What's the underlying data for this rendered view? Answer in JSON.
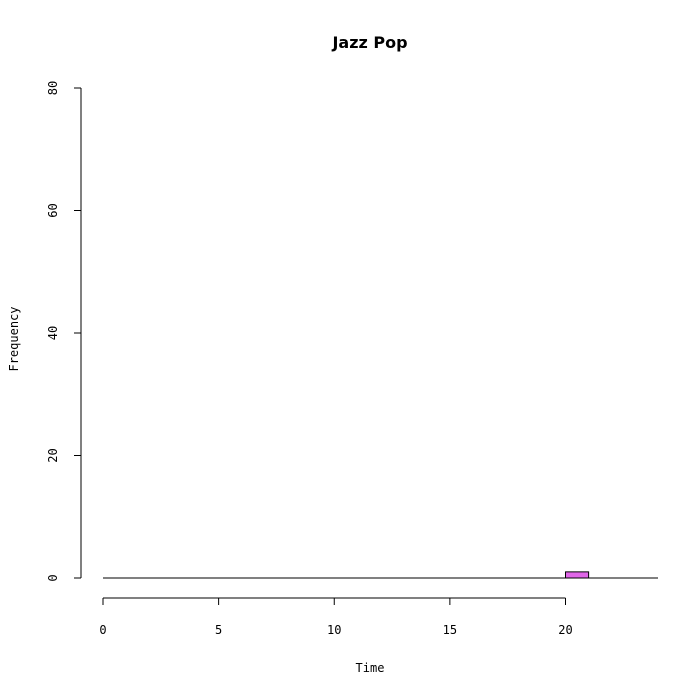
{
  "chart_data": {
    "type": "bar",
    "title": "Jazz Pop",
    "xlabel": "Time",
    "ylabel": "Frequency",
    "x_ticks": [
      "0",
      "5",
      "10",
      "15",
      "20"
    ],
    "y_ticks": [
      "0",
      "20",
      "40",
      "60",
      "80"
    ],
    "xlim": [
      0,
      24
    ],
    "ylim": [
      0,
      80
    ],
    "bins": [
      {
        "start": 20,
        "end": 21,
        "value": 1
      }
    ],
    "bar_color": "#E066E8",
    "bar_border": "#000000",
    "grid": false
  }
}
